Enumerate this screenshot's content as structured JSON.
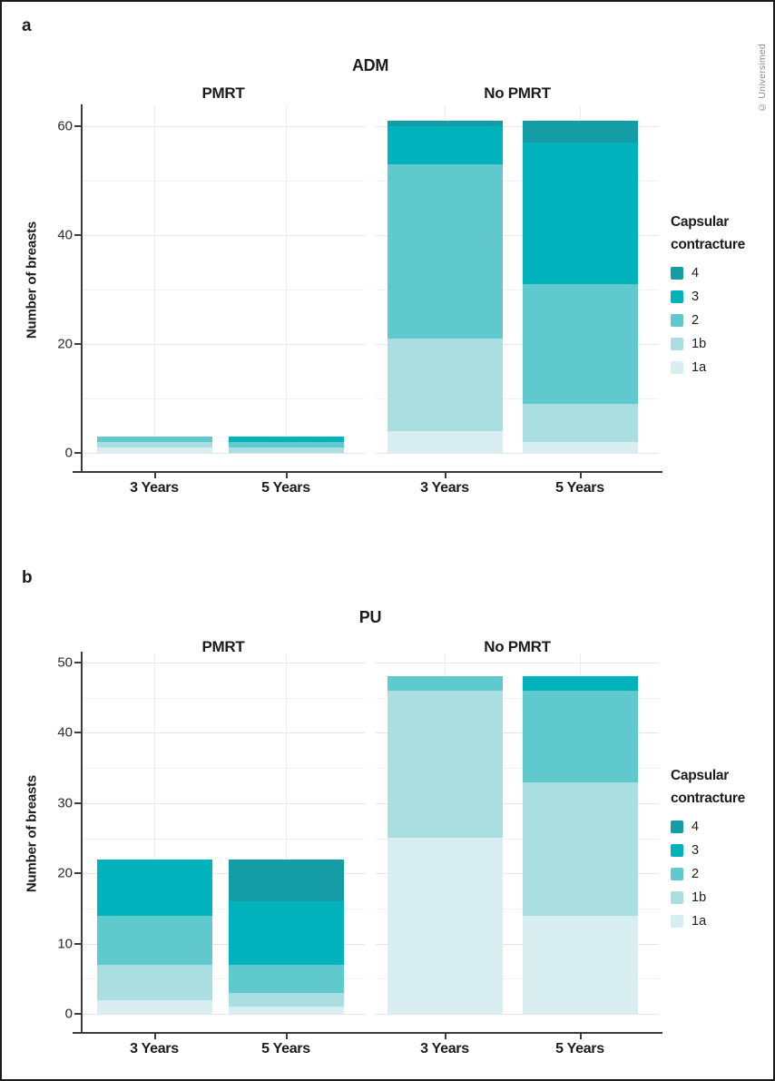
{
  "page": {
    "copyright": "© Universimed"
  },
  "legend": {
    "title_line1": "Capsular",
    "title_line2": "contracture",
    "items": [
      {
        "label": "4",
        "color": "#149da5"
      },
      {
        "label": "3",
        "color": "#00b2bc"
      },
      {
        "label": "2",
        "color": "#5fc9ce"
      },
      {
        "label": "1b",
        "color": "#abdee1"
      },
      {
        "label": "1a",
        "color": "#d9eef0"
      }
    ]
  },
  "chart_data": [
    {
      "type": "bar",
      "stacked": true,
      "panel_label": "a",
      "title": "ADM",
      "ylabel": "Number of breasts",
      "facets": [
        "PMRT",
        "No PMRT"
      ],
      "categories": [
        "3 Years",
        "5 Years"
      ],
      "yticks": [
        0,
        20,
        40,
        60
      ],
      "ylim": [
        0,
        63
      ],
      "grid": true,
      "legend_position": "right",
      "stack_order_bottom_to_top": [
        "1a",
        "1b",
        "2",
        "3",
        "4"
      ],
      "groups": [
        {
          "facet": "PMRT",
          "category": "3 Years",
          "values": {
            "1a": 1,
            "1b": 1,
            "2": 1
          }
        },
        {
          "facet": "PMRT",
          "category": "5 Years",
          "values": {
            "1b": 1,
            "2": 1,
            "3": 1
          }
        },
        {
          "facet": "No PMRT",
          "category": "3 Years",
          "values": {
            "1a": 4,
            "1b": 17,
            "2": 32,
            "3": 7,
            "4": 1
          }
        },
        {
          "facet": "No PMRT",
          "category": "5 Years",
          "values": {
            "1a": 2,
            "1b": 7,
            "2": 22,
            "3": 26,
            "4": 4
          }
        }
      ],
      "totals": [
        3,
        3,
        61,
        61
      ]
    },
    {
      "type": "bar",
      "stacked": true,
      "panel_label": "b",
      "title": "PU",
      "ylabel": "Number of breasts",
      "facets": [
        "PMRT",
        "No PMRT"
      ],
      "categories": [
        "3 Years",
        "5 Years"
      ],
      "yticks": [
        0,
        10,
        20,
        30,
        40,
        50
      ],
      "ylim": [
        0,
        52
      ],
      "grid": true,
      "legend_position": "right",
      "stack_order_bottom_to_top": [
        "1a",
        "1b",
        "2",
        "3",
        "4"
      ],
      "groups": [
        {
          "facet": "PMRT",
          "category": "3 Years",
          "values": {
            "1a": 2,
            "1b": 5,
            "2": 7,
            "3": 8
          }
        },
        {
          "facet": "PMRT",
          "category": "5 Years",
          "values": {
            "1a": 1,
            "1b": 2,
            "2": 4,
            "3": 9,
            "4": 6
          }
        },
        {
          "facet": "No PMRT",
          "category": "3 Years",
          "values": {
            "1a": 25,
            "1b": 21,
            "2": 2
          }
        },
        {
          "facet": "No PMRT",
          "category": "5 Years",
          "values": {
            "1a": 14,
            "1b": 19,
            "2": 13,
            "3": 2
          }
        }
      ],
      "totals": [
        22,
        22,
        48,
        48
      ]
    }
  ]
}
